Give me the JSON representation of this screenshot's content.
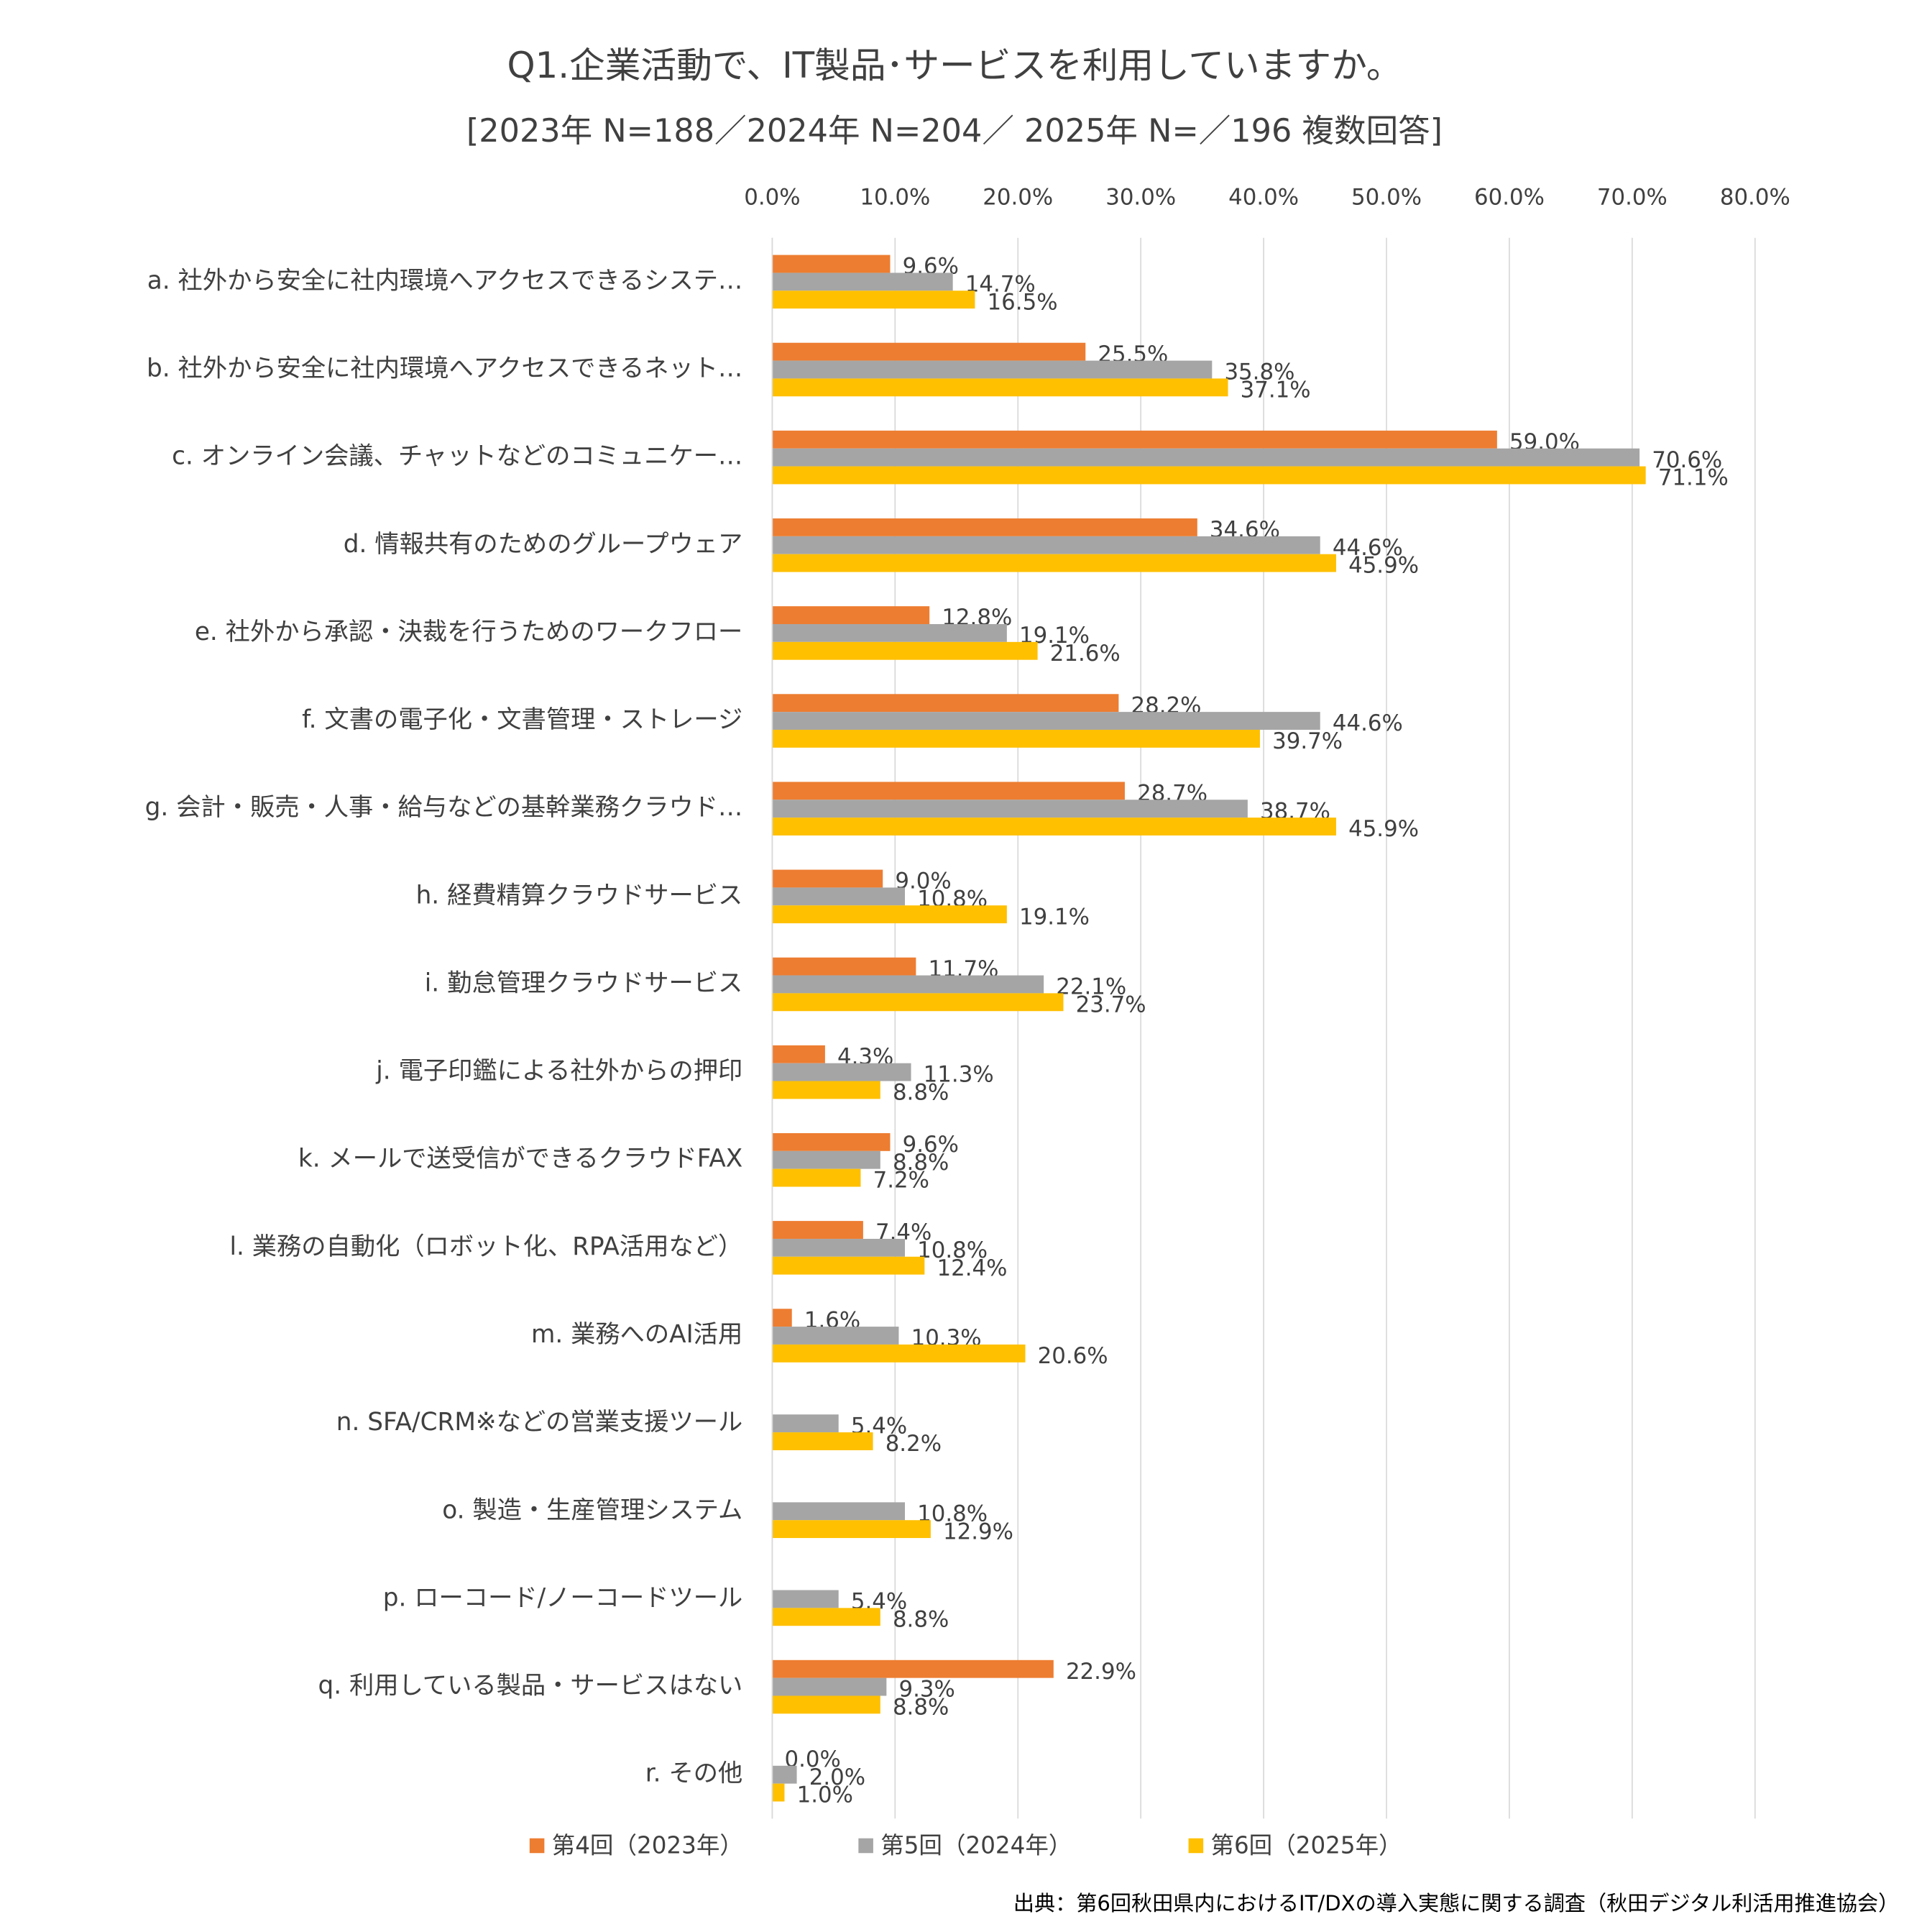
{
  "chart_data": {
    "type": "hbar",
    "title": "Q1.企業活動で、IT製品･サービスを利用していますか。",
    "subtitle": "[2023年 N=188／2024年 N=204／ 2025年 N=／196 複数回答]",
    "source": "出典：第6回秋田県内におけるIT/DXの導入実態に関する調査（秋田デジタル利活用推進協会）",
    "categories": [
      "a. 社外から安全に社内環境へアクセスできるシステ…",
      "b. 社外から安全に社内環境へアクセスできるネット…",
      "c. オンライン会議、チャットなどのコミュニケー…",
      "d. 情報共有のためのグループウェア",
      "e. 社外から承認・決裁を行うためのワークフロー",
      "f. 文書の電子化・文書管理・ストレージ",
      "g. 会計・販売・人事・給与などの基幹業務クラウド…",
      "h. 経費精算クラウドサービス",
      "i. 勤怠管理クラウドサービス",
      "j. 電子印鑑による社外からの押印",
      "k. メールで送受信ができるクラウドFAX",
      "l. 業務の自動化（ロボット化、RPA活用など）",
      "m. 業務へのAI活用",
      "n. SFA/CRM※などの営業支援ツール",
      "o. 製造・生産管理システム",
      "p. ローコード/ノーコードツール",
      "q. 利用している製品・サービスはない",
      "r. その他"
    ],
    "series": [
      {
        "name": "第4回（2023年）",
        "color": "#ed7d31",
        "values": [
          9.6,
          25.5,
          59.0,
          34.6,
          12.8,
          28.2,
          28.7,
          9.0,
          11.7,
          4.3,
          9.6,
          7.4,
          1.6,
          null,
          null,
          null,
          22.9,
          0.0
        ],
        "value_labels": [
          "9.6%",
          "25.5%",
          "59.0%",
          "34.6%",
          "12.8%",
          "28.2%",
          "28.7%",
          "9.0%",
          "11.7%",
          "4.3%",
          "9.6%",
          "7.4%",
          "1.6%",
          null,
          null,
          null,
          "22.9%",
          "0.0%"
        ]
      },
      {
        "name": "第5回（2024年）",
        "color": "#a5a5a5",
        "values": [
          14.7,
          35.8,
          70.6,
          44.6,
          19.1,
          44.6,
          38.7,
          10.8,
          22.1,
          11.3,
          8.8,
          10.8,
          10.3,
          5.4,
          10.8,
          5.4,
          9.3,
          2.0
        ],
        "value_labels": [
          "14.7%",
          "35.8%",
          "70.6%",
          "44.6%",
          "19.1%",
          "44.6%",
          "38.7%",
          "10.8%",
          "22.1%",
          "11.3%",
          "8.8%",
          "10.8%",
          "10.3%",
          "5.4%",
          "10.8%",
          "5.4%",
          "9.3%",
          "2.0%"
        ]
      },
      {
        "name": "第6回（2025年）",
        "color": "#ffc000",
        "values": [
          16.5,
          37.1,
          71.1,
          45.9,
          21.6,
          39.7,
          45.9,
          19.1,
          23.7,
          8.8,
          7.2,
          12.4,
          20.6,
          8.2,
          12.9,
          8.8,
          8.8,
          1.0
        ],
        "value_labels": [
          "16.5%",
          "37.1%",
          "71.1%",
          "45.9%",
          "21.6%",
          "39.7%",
          "45.9%",
          "19.1%",
          "23.7%",
          "8.8%",
          "7.2%",
          "12.4%",
          "20.6%",
          "8.2%",
          "12.9%",
          "8.8%",
          "8.8%",
          "1.0%"
        ]
      }
    ],
    "xlim": [
      0,
      80
    ],
    "xticks": [
      {
        "value": 0,
        "label": "0.0%"
      },
      {
        "value": 10,
        "label": "10.0%"
      },
      {
        "value": 20,
        "label": "20.0%"
      },
      {
        "value": 30,
        "label": "30.0%"
      },
      {
        "value": 40,
        "label": "40.0%"
      },
      {
        "value": 50,
        "label": "50.0%"
      },
      {
        "value": 60,
        "label": "60.0%"
      },
      {
        "value": 70,
        "label": "70.0%"
      },
      {
        "value": 80,
        "label": "80.0%"
      }
    ],
    "grid": true,
    "legend": "bottom"
  }
}
